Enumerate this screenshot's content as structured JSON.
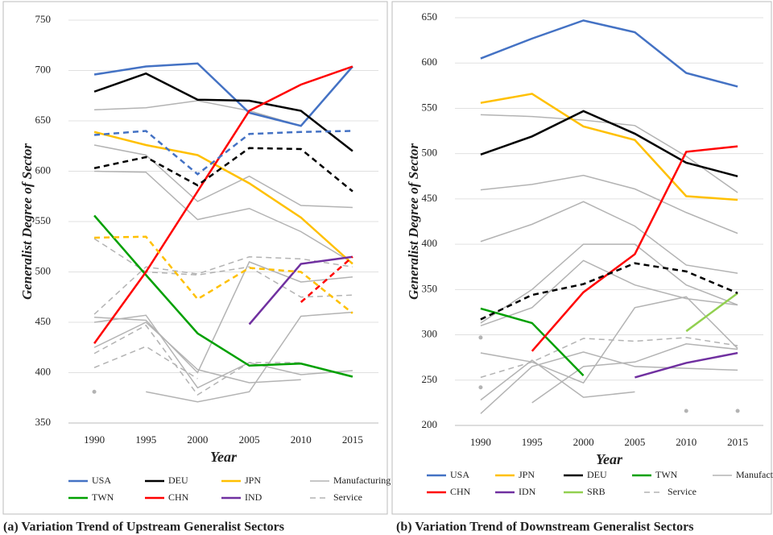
{
  "chart_data": [
    {
      "type": "line",
      "title": "(a) Variation Trend of Upstream Generalist Sectors",
      "ylabel": "Generalist  Degree of  Sector",
      "xlabel": "Year",
      "categories": [
        "1990",
        "1995",
        "2000",
        "2005",
        "2010",
        "2015"
      ],
      "ylim": [
        350,
        750
      ],
      "yticks": [
        350,
        400,
        450,
        500,
        550,
        600,
        650,
        700,
        750
      ],
      "grid": true,
      "series": [
        {
          "name": "USA",
          "color": "#4472c4",
          "dashed": false,
          "values": [
            696,
            704,
            707,
            658,
            645,
            704
          ]
        },
        {
          "name": "DEU",
          "color": "#000000",
          "dashed": false,
          "values": [
            679,
            697,
            671,
            670,
            660,
            620
          ]
        },
        {
          "name": "JPN",
          "color": "#ffc000",
          "dashed": false,
          "values": [
            639,
            626,
            616,
            588,
            554,
            508
          ]
        },
        {
          "name": "Manufacturing",
          "color": "#b3b3b3",
          "dashed": false,
          "values": [
            661,
            663,
            670,
            660,
            645,
            null
          ]
        },
        {
          "name": "TWN",
          "color": "#00a000",
          "dashed": false,
          "values": [
            556,
            497,
            439,
            407,
            409,
            396
          ]
        },
        {
          "name": "CHN",
          "color": "#ff0000",
          "dashed": false,
          "values": [
            429,
            500,
            580,
            660,
            686,
            704
          ]
        },
        {
          "name": "IND",
          "color": "#7030a0",
          "dashed": false,
          "values": [
            null,
            null,
            null,
            448,
            508,
            515
          ]
        },
        {
          "name": "Service",
          "color": "#b3b3b3",
          "dashed": true,
          "values": [
            458,
            505,
            498,
            515,
            513,
            505
          ]
        },
        {
          "name": "Manufacturing",
          "color": "#b3b3b3",
          "dashed": false,
          "values": [
            626,
            616,
            570,
            595,
            566,
            564
          ]
        },
        {
          "name": "Manufacturing",
          "color": "#b3b3b3",
          "dashed": false,
          "values": [
            600,
            599,
            552,
            563,
            540,
            509
          ]
        },
        {
          "name": "Manufacturing",
          "color": "#b3b3b3",
          "dashed": false,
          "values": [
            455,
            452,
            400,
            510,
            490,
            495
          ]
        },
        {
          "name": "Manufacturing",
          "color": "#b3b3b3",
          "dashed": false,
          "values": [
            450,
            457,
            385,
            410,
            398,
            402
          ]
        },
        {
          "name": "Manufacturing",
          "color": "#b3b3b3",
          "dashed": false,
          "values": [
            425,
            450,
            403,
            390,
            393,
            null
          ]
        },
        {
          "name": "Manufacturing",
          "color": "#b3b3b3",
          "dashed": false,
          "values": [
            null,
            381,
            371,
            381,
            456,
            460
          ]
        },
        {
          "name": "Manufacturing",
          "color": "#b3b3b3",
          "dashed": false,
          "values": [
            381,
            null,
            null,
            null,
            null,
            null
          ]
        },
        {
          "name": "Service",
          "color": "#b3b3b3",
          "dashed": true,
          "values": [
            533,
            500,
            497,
            505,
            475,
            477
          ]
        },
        {
          "name": "Service",
          "color": "#b3b3b3",
          "dashed": true,
          "values": [
            419,
            447,
            378,
            410,
            410,
            null
          ]
        },
        {
          "name": "Service",
          "color": "#b3b3b3",
          "dashed": true,
          "values": [
            405,
            426,
            394,
            null,
            null,
            null
          ]
        },
        {
          "name": "USA",
          "color": "#4472c4",
          "dashed": true,
          "values": [
            636,
            640,
            597,
            637,
            639,
            640
          ]
        },
        {
          "name": "DEU",
          "color": "#000000",
          "dashed": true,
          "values": [
            603,
            614,
            586,
            623,
            622,
            580
          ]
        },
        {
          "name": "JPN",
          "color": "#ffc000",
          "dashed": true,
          "values": [
            534,
            535,
            473,
            504,
            500,
            459
          ]
        },
        {
          "name": "CHN",
          "color": "#ff0000",
          "dashed": true,
          "values": [
            null,
            null,
            null,
            null,
            470,
            515
          ]
        }
      ]
    },
    {
      "type": "line",
      "title": "(b) Variation Trend of Downstream Generalist Sectors",
      "ylabel": "Generalist Degree of Sector",
      "xlabel": "Year",
      "categories": [
        "1990",
        "1995",
        "2000",
        "2005",
        "2010",
        "2015"
      ],
      "ylim": [
        200,
        650
      ],
      "yticks": [
        200,
        250,
        300,
        350,
        400,
        450,
        500,
        550,
        600,
        650
      ],
      "grid": true,
      "series": [
        {
          "name": "USA",
          "color": "#4472c4",
          "dashed": false,
          "values": [
            605,
            627,
            647,
            634,
            589,
            574
          ]
        },
        {
          "name": "JPN",
          "color": "#ffc000",
          "dashed": false,
          "values": [
            556,
            566,
            530,
            515,
            453,
            449
          ]
        },
        {
          "name": "DEU",
          "color": "#000000",
          "dashed": false,
          "values": [
            499,
            519,
            547,
            522,
            490,
            475
          ]
        },
        {
          "name": "TWN",
          "color": "#00a000",
          "dashed": false,
          "values": [
            329,
            313,
            255,
            null,
            null,
            null
          ]
        },
        {
          "name": "Manufacturing",
          "color": "#b3b3b3",
          "dashed": false,
          "values": [
            543,
            541,
            537,
            531,
            497,
            457
          ]
        },
        {
          "name": "CHN",
          "color": "#ff0000",
          "dashed": false,
          "values": [
            null,
            282,
            347,
            389,
            502,
            508
          ]
        },
        {
          "name": "IDN",
          "color": "#7030a0",
          "dashed": false,
          "values": [
            null,
            null,
            null,
            253,
            269,
            280
          ]
        },
        {
          "name": "SRB",
          "color": "#92d050",
          "dashed": false,
          "values": [
            null,
            null,
            null,
            null,
            304,
            346
          ]
        },
        {
          "name": "Service",
          "color": "#b3b3b3",
          "dashed": true,
          "values": [
            253,
            270,
            296,
            293,
            297,
            288
          ]
        },
        {
          "name": "Manufacturing",
          "color": "#b3b3b3",
          "dashed": false,
          "values": [
            460,
            466,
            476,
            461,
            435,
            412
          ]
        },
        {
          "name": "Manufacturing",
          "color": "#b3b3b3",
          "dashed": false,
          "values": [
            403,
            422,
            447,
            420,
            377,
            368
          ]
        },
        {
          "name": "Manufacturing",
          "color": "#b3b3b3",
          "dashed": false,
          "values": [
            313,
            350,
            400,
            400,
            355,
            333
          ]
        },
        {
          "name": "Manufacturing",
          "color": "#b3b3b3",
          "dashed": false,
          "values": [
            310,
            330,
            382,
            355,
            340,
            333
          ]
        },
        {
          "name": "Manufacturing",
          "color": "#b3b3b3",
          "dashed": false,
          "values": [
            280,
            270,
            247,
            330,
            342,
            285
          ]
        },
        {
          "name": "Manufacturing",
          "color": "#b3b3b3",
          "dashed": false,
          "values": [
            213,
            265,
            281,
            265,
            263,
            261
          ]
        },
        {
          "name": "Manufacturing",
          "color": "#b3b3b3",
          "dashed": false,
          "values": [
            228,
            272,
            231,
            237,
            null,
            null
          ]
        },
        {
          "name": "Manufacturing",
          "color": "#b3b3b3",
          "dashed": false,
          "values": [
            null,
            225,
            265,
            270,
            290,
            284
          ]
        },
        {
          "name": "Manufacturing",
          "color": "#b3b3b3",
          "dashed": false,
          "values": [
            297,
            null,
            null,
            null,
            null,
            null
          ]
        },
        {
          "name": "Manufacturing",
          "color": "#b3b3b3",
          "dashed": false,
          "values": [
            null,
            null,
            null,
            null,
            216,
            null
          ]
        },
        {
          "name": "Manufacturing",
          "color": "#b3b3b3",
          "dashed": false,
          "values": [
            null,
            null,
            null,
            null,
            null,
            216
          ]
        },
        {
          "name": "Service",
          "color": "#b3b3b3",
          "dashed": true,
          "values": [
            242,
            null,
            null,
            null,
            null,
            null
          ]
        },
        {
          "name": "DEU",
          "color": "#000000",
          "dashed": true,
          "values": [
            317,
            344,
            356,
            379,
            370,
            346
          ]
        }
      ]
    }
  ]
}
